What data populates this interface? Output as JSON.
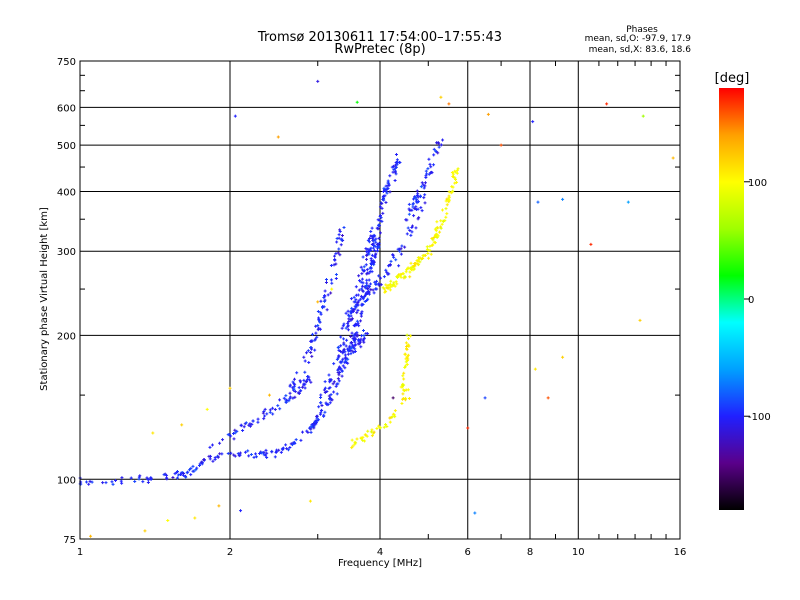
{
  "chart_data": {
    "type": "scatter",
    "title": "Tromsø 20130611 17:54:00–17:55:43",
    "subtitle": "RwPretec (8p)",
    "xlabel": "Frequency [MHz]",
    "ylabel": "Stationary phase Virtual Height [km]",
    "x_scale": "log",
    "y_scale": "log",
    "xlim": [
      1,
      16
    ],
    "ylim": [
      75,
      750
    ],
    "grid": true,
    "x_ticks": [
      1,
      2,
      4,
      6,
      8,
      10,
      16
    ],
    "x_minor_ticks": [
      3,
      5,
      7,
      9,
      11,
      12,
      13,
      14,
      15
    ],
    "y_ticks": [
      75,
      100,
      200,
      300,
      400,
      500,
      600,
      750
    ],
    "y_minor_ticks": [
      150,
      250,
      350,
      450,
      550,
      650,
      700
    ],
    "stats": {
      "title": "Phases",
      "line_o": "mean, sd,O: -97.9, 17.9",
      "line_x": "mean, sd,X:  83.6, 18.6"
    },
    "colorbar": {
      "label": "[deg]",
      "range": [
        -180,
        180
      ],
      "ticks": [
        100,
        0,
        -100
      ],
      "colormap": [
        "#000000",
        "#5a008a",
        "#2020ff",
        "#00a0ff",
        "#00ffff",
        "#00ff00",
        "#a0ff00",
        "#ffff00",
        "#ffa000",
        "#ff0000"
      ]
    },
    "series": [
      {
        "name": "O",
        "phase": -100,
        "segments": [
          {
            "x": [
              1.0,
              1.25,
              1.5,
              1.65,
              1.8,
              2.0,
              2.3,
              2.6,
              2.9,
              3.1,
              3.3,
              3.5,
              3.7,
              3.85,
              4.0
            ],
            "y": [
              99,
              100,
              101,
              103,
              110,
              113,
              112,
              116,
              127,
              140,
              160,
              190,
              230,
              280,
              320
            ],
            "spread": 0.012,
            "count": 260
          },
          {
            "x": [
              1.8,
              2.1,
              2.4,
              2.7,
              2.9
            ],
            "y": [
              115,
              128,
              138,
              150,
              165
            ],
            "spread": 0.015,
            "count": 70
          },
          {
            "x": [
              2.6,
              2.85,
              3.0,
              3.1,
              3.25,
              3.35
            ],
            "y": [
              150,
              175,
              210,
              240,
              280,
              330
            ],
            "spread": 0.02,
            "count": 90
          },
          {
            "x": [
              2.9,
              3.1,
              3.3,
              3.45,
              3.6,
              3.75
            ],
            "y": [
              125,
              150,
              170,
              185,
              195,
              200
            ],
            "spread": 0.02,
            "count": 80
          },
          {
            "x": [
              3.3,
              3.45,
              3.6,
              3.7,
              3.8,
              3.9
            ],
            "y": [
              180,
              210,
              240,
              270,
              300,
              330
            ],
            "spread": 0.025,
            "count": 110
          },
          {
            "x": [
              3.5,
              3.75,
              4.0,
              4.3,
              4.6,
              4.9
            ],
            "y": [
              220,
              245,
              260,
              290,
              330,
              380
            ],
            "spread": 0.02,
            "count": 80
          },
          {
            "x": [
              3.85,
              4.0,
              4.1,
              4.25,
              4.4
            ],
            "y": [
              300,
              350,
              400,
              440,
              470
            ],
            "spread": 0.02,
            "count": 70
          },
          {
            "x": [
              4.5,
              4.7,
              4.9,
              5.1,
              5.3
            ],
            "y": [
              350,
              380,
              410,
              460,
              510
            ],
            "spread": 0.02,
            "count": 60
          }
        ]
      },
      {
        "name": "X",
        "phase": 100,
        "segments": [
          {
            "x": [
              4.1,
              4.4,
              4.7,
              5.0,
              5.3,
              5.5,
              5.7
            ],
            "y": [
              250,
              265,
              280,
              300,
              340,
              390,
              440
            ],
            "spread": 0.015,
            "count": 140
          },
          {
            "x": [
              4.4,
              4.5,
              4.55,
              4.6
            ],
            "y": [
              150,
              170,
              190,
              200
            ],
            "spread": 0.015,
            "count": 35
          },
          {
            "x": [
              3.5,
              3.8,
              4.1,
              4.35,
              4.55
            ],
            "y": [
              118,
              125,
              130,
              140,
              152
            ],
            "spread": 0.015,
            "count": 45
          }
        ]
      }
    ],
    "scatter_points": [
      {
        "x": 2.05,
        "y": 575,
        "phase": -100
      },
      {
        "x": 2.5,
        "y": 520,
        "phase": 140
      },
      {
        "x": 3.0,
        "y": 680,
        "phase": -110
      },
      {
        "x": 3.6,
        "y": 615,
        "phase": 20
      },
      {
        "x": 5.3,
        "y": 630,
        "phase": 120
      },
      {
        "x": 5.5,
        "y": 610,
        "phase": 150
      },
      {
        "x": 6.6,
        "y": 580,
        "phase": 140
      },
      {
        "x": 7.0,
        "y": 500,
        "phase": 160
      },
      {
        "x": 8.1,
        "y": 560,
        "phase": -100
      },
      {
        "x": 8.3,
        "y": 380,
        "phase": -80
      },
      {
        "x": 9.3,
        "y": 385,
        "phase": -70
      },
      {
        "x": 11.4,
        "y": 610,
        "phase": 170
      },
      {
        "x": 12.6,
        "y": 380,
        "phase": -60
      },
      {
        "x": 13.5,
        "y": 575,
        "phase": 60
      },
      {
        "x": 15.5,
        "y": 470,
        "phase": 130
      },
      {
        "x": 10.6,
        "y": 310,
        "phase": 170
      },
      {
        "x": 13.3,
        "y": 215,
        "phase": 120
      },
      {
        "x": 9.3,
        "y": 180,
        "phase": 120
      },
      {
        "x": 8.2,
        "y": 170,
        "phase": 110
      },
      {
        "x": 8.7,
        "y": 148,
        "phase": 160
      },
      {
        "x": 6.0,
        "y": 128,
        "phase": 170
      },
      {
        "x": 6.5,
        "y": 148,
        "phase": -90
      },
      {
        "x": 6.2,
        "y": 85,
        "phase": -70
      },
      {
        "x": 1.05,
        "y": 76,
        "phase": 130
      },
      {
        "x": 1.35,
        "y": 78,
        "phase": 120
      },
      {
        "x": 1.5,
        "y": 82,
        "phase": 100
      },
      {
        "x": 1.7,
        "y": 83,
        "phase": 110
      },
      {
        "x": 1.9,
        "y": 88,
        "phase": 130
      },
      {
        "x": 2.1,
        "y": 86,
        "phase": -100
      },
      {
        "x": 2.9,
        "y": 90,
        "phase": 110
      },
      {
        "x": 1.4,
        "y": 125,
        "phase": 110
      },
      {
        "x": 1.6,
        "y": 130,
        "phase": 120
      },
      {
        "x": 1.8,
        "y": 140,
        "phase": 100
      },
      {
        "x": 2.0,
        "y": 155,
        "phase": 120
      },
      {
        "x": 2.4,
        "y": 150,
        "phase": 130
      },
      {
        "x": 4.25,
        "y": 148,
        "phase": -150
      },
      {
        "x": 3.0,
        "y": 235,
        "phase": 130
      },
      {
        "x": 3.2,
        "y": 250,
        "phase": 100
      }
    ]
  }
}
